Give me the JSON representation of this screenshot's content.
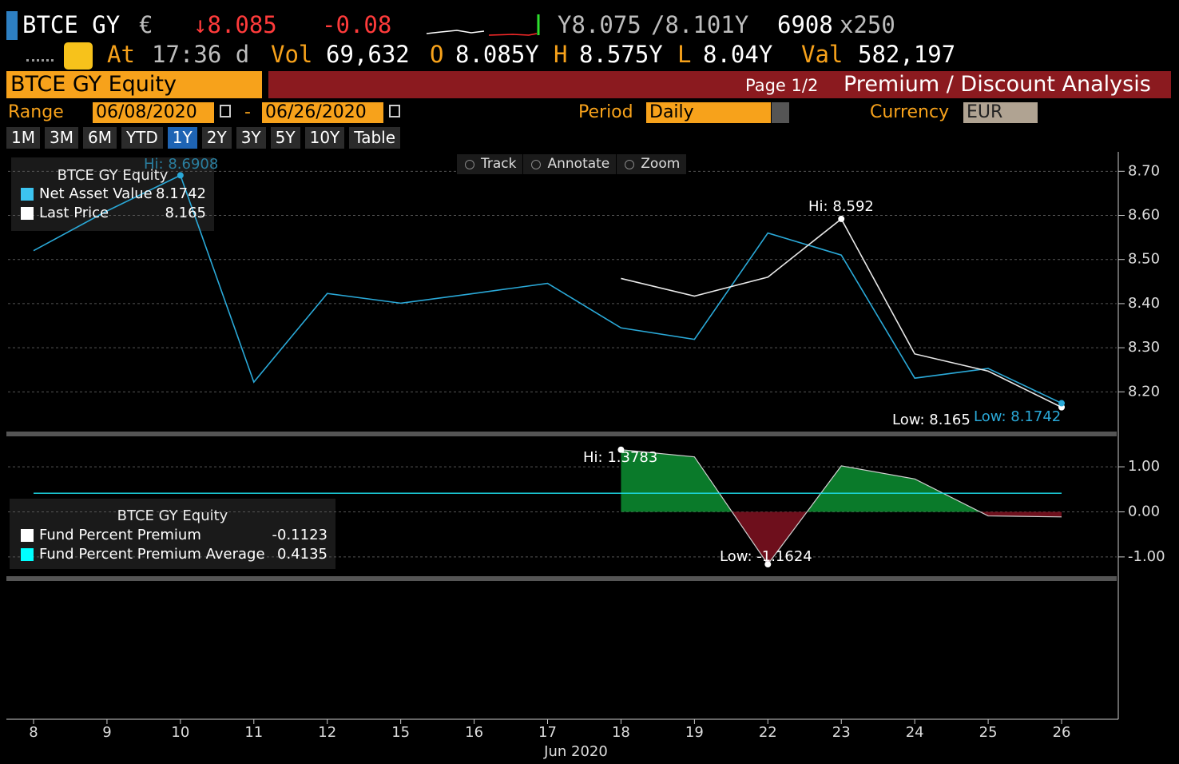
{
  "header": {
    "ticker": "BTCE GY",
    "currency": "€",
    "price": "↓8.085",
    "change": "-0.08",
    "bid": "Y8.075",
    "ask": "/8.101Y",
    "size": "6908",
    "size_mult": "x250",
    "time_label": "At",
    "time": "17:36 d",
    "vol_label": "Vol",
    "vol": "69,632",
    "open_label": "O",
    "open": "8.085Y",
    "high_label": "H",
    "high": "8.575Y",
    "low_label": "L",
    "low": "8.04Y",
    "val_label": "Val",
    "val": "582,197"
  },
  "title_bar": {
    "security": "BTCE GY Equity",
    "page": "Page 1/2",
    "screen": "Premium / Discount Analysis"
  },
  "controls": {
    "range_label": "Range",
    "start": "06/08/2020",
    "dash": "-",
    "end": "06/26/2020",
    "period_label": "Period",
    "period": "Daily",
    "currency_label": "Currency",
    "currency": "EUR"
  },
  "buttons": [
    "1M",
    "3M",
    "6M",
    "YTD",
    "1Y",
    "2Y",
    "3Y",
    "5Y",
    "10Y",
    "Table"
  ],
  "selected_button": "1Y",
  "toolbar": [
    "Track",
    "Annotate",
    "Zoom"
  ],
  "chart_data": [
    {
      "type": "line",
      "categories": [
        "8",
        "9",
        "10",
        "11",
        "12",
        "15",
        "16",
        "17",
        "18",
        "19",
        "22",
        "23",
        "24",
        "25",
        "26"
      ],
      "xlabel": "Jun 2020",
      "legend_title": "BTCE GY Equity",
      "series": [
        {
          "name": "Net Asset Value",
          "color": "#2aa9d8",
          "values": [
            8.52,
            8.61,
            8.6908,
            8.222,
            8.423,
            8.401,
            8.423,
            8.446,
            8.345,
            8.319,
            8.56,
            8.51,
            8.231,
            8.253,
            8.1742
          ]
        },
        {
          "name": "Last Price",
          "color": "#e8e8e8",
          "values": [
            null,
            null,
            null,
            null,
            null,
            null,
            null,
            null,
            8.457,
            8.417,
            8.46,
            8.592,
            8.286,
            8.247,
            8.165
          ]
        }
      ],
      "annotations": [
        "Hi: 8.6908",
        "Hi: 8.592",
        "Low: 8.165",
        "Low: 8.1742"
      ],
      "ylim": [
        8.11,
        8.735
      ],
      "yticks": [
        {
          "value": 8.2,
          "label": "8.20"
        },
        {
          "value": 8.3,
          "label": "8.30"
        },
        {
          "value": 8.4,
          "label": "8.40"
        },
        {
          "value": 8.5,
          "label": "8.50"
        },
        {
          "value": 8.6,
          "label": "8.60"
        },
        {
          "value": 8.7,
          "label": "8.70"
        }
      ],
      "grid": true
    },
    {
      "type": "area",
      "legend_title": "BTCE GY Equity",
      "series": [
        {
          "name": "Fund Percent Premium",
          "color": "#ffffff",
          "values": [
            null,
            null,
            null,
            null,
            null,
            null,
            null,
            null,
            1.3783,
            1.22,
            -1.1624,
            1.02,
            0.73,
            -0.09,
            -0.1123
          ]
        },
        {
          "name": "Fund Percent Premium Average",
          "color": "#1ee0ee",
          "values": [
            0.4135,
            0.4135,
            0.4135,
            0.4135,
            0.4135,
            0.4135,
            0.4135,
            0.4135,
            0.4135,
            0.4135,
            0.4135,
            0.4135,
            0.4135,
            0.4135,
            0.4135
          ]
        }
      ],
      "positive_color": "#0a7a2a",
      "negative_color": "#6e0f1c",
      "annotations": [
        "Hi: 1.3783",
        "Low: -1.1624"
      ],
      "ylim": [
        -1.41,
        1.64
      ],
      "yticks": [
        {
          "value": -1,
          "label": "-1.00"
        },
        {
          "value": 0,
          "label": "0.00"
        },
        {
          "value": 1,
          "label": "1.00"
        }
      ],
      "grid": true
    }
  ]
}
